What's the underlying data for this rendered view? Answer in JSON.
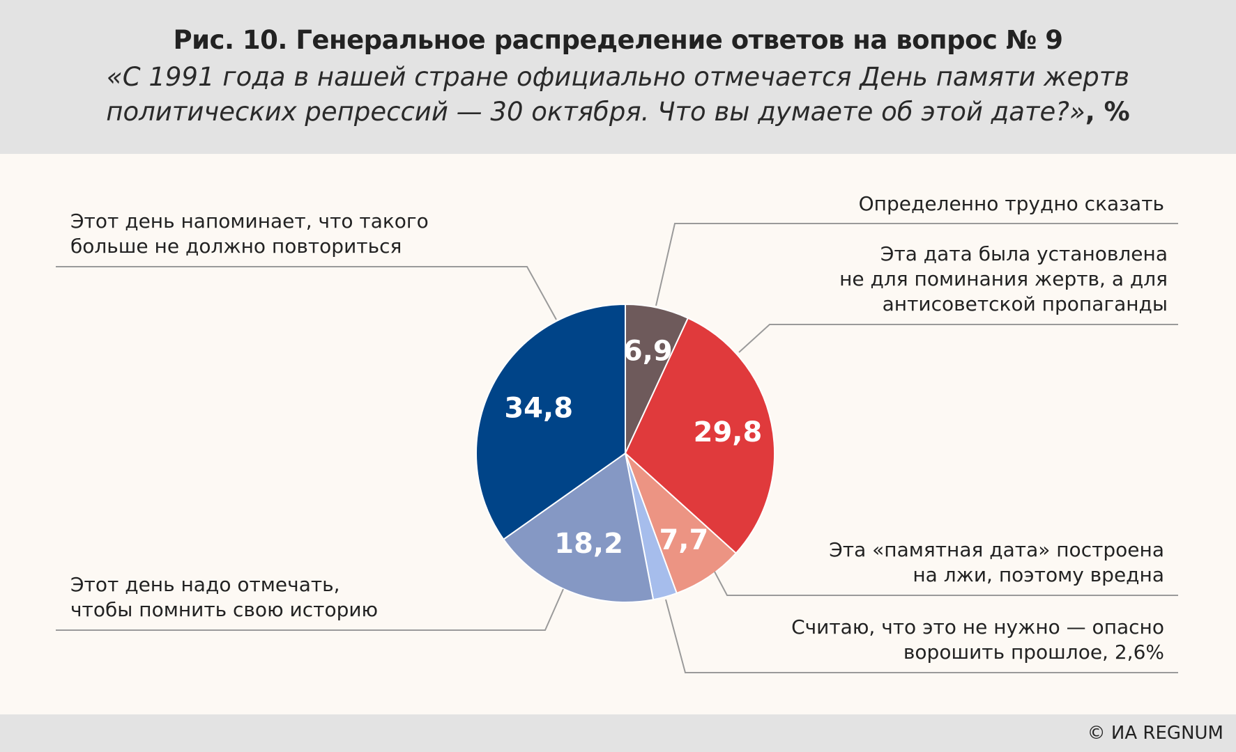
{
  "header": {
    "title": "Рис. 10. Генеральное распределение ответов на вопрос № 9",
    "subtitle_line1": "«С 1991 года в нашей стране официально отмечается День памяти жертв",
    "subtitle_line2": "политических репрессий — 30 октября. Что вы думаете об этой дате?»",
    "unit": ", %"
  },
  "footer": {
    "credit": "© ИА REGNUM"
  },
  "chart_data": {
    "type": "pie",
    "title": "Рис. 10. Генеральное распределение ответов на вопрос № 9",
    "start": "12 o'clock",
    "direction": "clockwise",
    "slices": [
      {
        "label": "Определенно трудно сказать",
        "value": 6.9,
        "value_label": "6,9",
        "color": "#6e5a5b"
      },
      {
        "label": "Эта дата была установлена не для поминания жертв, а для антисоветской пропаганды",
        "value": 29.8,
        "value_label": "29,8",
        "color": "#e03a3c"
      },
      {
        "label": "Эта «памятная дата» построена на лжи, поэтому вредна",
        "value": 7.7,
        "value_label": "7,7",
        "color": "#ec9483"
      },
      {
        "label": "Считаю, что это не нужно — опасно ворошить прошлое, 2,6%",
        "value": 2.6,
        "value_label": "",
        "color": "#a6bdec"
      },
      {
        "label": "Этот день надо отмечать, чтобы помнить свою историю",
        "value": 18.2,
        "value_label": "18,2",
        "color": "#8598c4"
      },
      {
        "label": "Этот день напоминает, что такого больше не должно повториться",
        "value": 34.8,
        "value_label": "34,8",
        "color": "#004488"
      }
    ],
    "callouts": [
      {
        "slice": 0,
        "lines": [
          "Определенно трудно сказать"
        ]
      },
      {
        "slice": 1,
        "lines": [
          "Эта дата была установлена",
          "не для поминания жертв, а для",
          "антисоветской пропаганды"
        ]
      },
      {
        "slice": 2,
        "lines": [
          "Эта «памятная дата» построена",
          "на лжи, поэтому вредна"
        ]
      },
      {
        "slice": 3,
        "lines": [
          "Считаю, что это не нужно — опасно",
          "ворошить прошлое, 2,6%"
        ]
      },
      {
        "slice": 4,
        "lines": [
          "Этот день надо отмечать,",
          "чтобы помнить свою историю"
        ]
      },
      {
        "slice": 5,
        "lines": [
          "Этот день напоминает, что такого",
          "больше не должно повториться"
        ]
      }
    ],
    "leader_color": "#9a9a9a",
    "value_label_color": "#ffffff"
  }
}
